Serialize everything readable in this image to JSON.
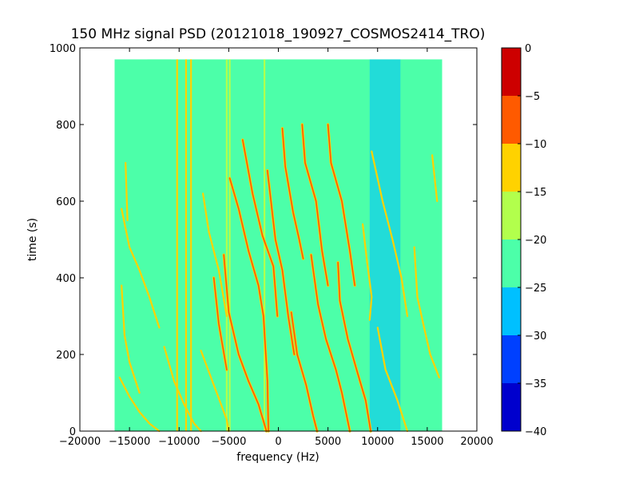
{
  "chart_data": {
    "type": "heatmap",
    "title": "150 MHz signal PSD (20121018_190927_COSMOS2414_TRO)",
    "xlabel": "frequency (Hz)",
    "ylabel": "time (s)",
    "xlim": [
      -20000,
      20000
    ],
    "ylim": [
      0,
      1000
    ],
    "x_ticks": [
      -20000,
      -15000,
      -10000,
      -5000,
      0,
      5000,
      10000,
      15000,
      20000
    ],
    "x_tick_labels": [
      "−20000",
      "−15000",
      "−10000",
      "−5000",
      "0",
      "5000",
      "10000",
      "15000",
      "20000"
    ],
    "y_ticks": [
      0,
      200,
      400,
      600,
      800,
      1000
    ],
    "y_tick_labels": [
      "0",
      "200",
      "400",
      "600",
      "800",
      "1000"
    ],
    "data_extent": {
      "x": [
        -16500,
        16500
      ],
      "y": [
        0,
        970
      ]
    },
    "background_level": -22,
    "colorbar": {
      "levels": [
        -40,
        -35,
        -30,
        -25,
        -20,
        -15,
        -10,
        -5,
        0
      ],
      "tick_labels": [
        "−40",
        "−35",
        "−30",
        "−25",
        "−20",
        "−15",
        "−10",
        "−5",
        "0"
      ],
      "colors": [
        "#0000cd",
        "#0040ff",
        "#00c0ff",
        "#4cffa9",
        "#b2ff4c",
        "#ffd200",
        "#ff5a00",
        "#cd0000"
      ]
    },
    "low_power_bands": [
      {
        "x": [
          9200,
          12300
        ],
        "y": [
          0,
          970
        ],
        "level": -27
      },
      {
        "x": [
          -13200,
          -10800
        ],
        "y": [
          0,
          970
        ],
        "level": -24
      }
    ],
    "vertical_lines": [
      {
        "x": -10200,
        "y": [
          0,
          970
        ],
        "level": -15
      },
      {
        "x": -9300,
        "y": [
          0,
          970
        ],
        "level": -15
      },
      {
        "x": -8800,
        "y": [
          0,
          970
        ],
        "level": -15
      },
      {
        "x": -5200,
        "y": [
          0,
          970
        ],
        "level": -17
      },
      {
        "x": -4900,
        "y": [
          0,
          970
        ],
        "level": -17
      },
      {
        "x": -1400,
        "y": [
          0,
          970
        ],
        "level": -20
      }
    ],
    "series": [
      {
        "level": -8,
        "values": [
          [
            -4900,
            660
          ],
          [
            -4000,
            580
          ],
          [
            -3000,
            470
          ],
          [
            -2000,
            380
          ],
          [
            -1500,
            300
          ],
          [
            -1100,
            130
          ],
          [
            -1000,
            0
          ]
        ]
      },
      {
        "level": -8,
        "values": [
          [
            -5500,
            460
          ],
          [
            -5000,
            310
          ],
          [
            -4000,
            200
          ],
          [
            -3000,
            130
          ],
          [
            -2000,
            70
          ],
          [
            -1200,
            0
          ]
        ]
      },
      {
        "level": -8,
        "values": [
          [
            -3600,
            760
          ],
          [
            -2600,
            620
          ],
          [
            -1600,
            510
          ],
          [
            -500,
            430
          ],
          [
            -100,
            300
          ]
        ]
      },
      {
        "level": -8,
        "values": [
          [
            -1100,
            680
          ],
          [
            -700,
            590
          ],
          [
            -300,
            500
          ],
          [
            400,
            420
          ],
          [
            1000,
            300
          ],
          [
            1600,
            200
          ]
        ]
      },
      {
        "level": -8,
        "values": [
          [
            400,
            790
          ],
          [
            700,
            690
          ],
          [
            1500,
            570
          ],
          [
            2100,
            500
          ],
          [
            2500,
            450
          ]
        ]
      },
      {
        "level": -8,
        "values": [
          [
            1300,
            310
          ],
          [
            1900,
            200
          ],
          [
            2800,
            120
          ],
          [
            3500,
            40
          ],
          [
            3900,
            0
          ]
        ]
      },
      {
        "level": -8,
        "values": [
          [
            2400,
            800
          ],
          [
            2700,
            700
          ],
          [
            3800,
            600
          ],
          [
            4400,
            470
          ],
          [
            5000,
            380
          ]
        ]
      },
      {
        "level": -8,
        "values": [
          [
            3300,
            460
          ],
          [
            4000,
            330
          ],
          [
            4800,
            240
          ],
          [
            5800,
            160
          ],
          [
            6400,
            100
          ],
          [
            7200,
            0
          ]
        ]
      },
      {
        "level": -8,
        "values": [
          [
            5000,
            800
          ],
          [
            5300,
            700
          ],
          [
            6400,
            600
          ],
          [
            7200,
            470
          ],
          [
            7700,
            380
          ]
        ]
      },
      {
        "level": -8,
        "values": [
          [
            6000,
            440
          ],
          [
            6200,
            340
          ],
          [
            7000,
            240
          ],
          [
            8000,
            150
          ],
          [
            8800,
            80
          ],
          [
            9300,
            0
          ]
        ]
      },
      {
        "level": -8,
        "values": [
          [
            -6500,
            400
          ],
          [
            -6000,
            280
          ],
          [
            -5200,
            160
          ]
        ]
      },
      {
        "level": -15,
        "values": [
          [
            -15800,
            580
          ],
          [
            -15000,
            480
          ],
          [
            -14000,
            420
          ],
          [
            -13000,
            350
          ],
          [
            -12000,
            270
          ]
        ]
      },
      {
        "level": -15,
        "values": [
          [
            -15800,
            380
          ],
          [
            -15500,
            250
          ],
          [
            -15000,
            180
          ],
          [
            -14000,
            100
          ]
        ]
      },
      {
        "level": -15,
        "values": [
          [
            -16000,
            140
          ],
          [
            -15000,
            90
          ],
          [
            -14000,
            50
          ],
          [
            -13000,
            20
          ],
          [
            -12000,
            0
          ]
        ]
      },
      {
        "level": -15,
        "values": [
          [
            -15400,
            700
          ],
          [
            -15200,
            550
          ]
        ]
      },
      {
        "level": -15,
        "values": [
          [
            -7600,
            620
          ],
          [
            -7000,
            520
          ],
          [
            -6000,
            420
          ],
          [
            -5200,
            300
          ]
        ]
      },
      {
        "level": -15,
        "values": [
          [
            -7800,
            210
          ],
          [
            -6500,
            120
          ],
          [
            -5200,
            30
          ],
          [
            -5000,
            0
          ]
        ]
      },
      {
        "level": -15,
        "values": [
          [
            -11500,
            220
          ],
          [
            -10500,
            130
          ],
          [
            -9500,
            70
          ],
          [
            -8500,
            20
          ],
          [
            -7800,
            0
          ]
        ]
      },
      {
        "level": -15,
        "values": [
          [
            8500,
            540
          ],
          [
            8900,
            450
          ],
          [
            9400,
            350
          ],
          [
            9200,
            290
          ]
        ]
      },
      {
        "level": -15,
        "values": [
          [
            9400,
            730
          ],
          [
            10500,
            600
          ],
          [
            11500,
            500
          ],
          [
            12400,
            400
          ],
          [
            13000,
            300
          ]
        ]
      },
      {
        "level": -15,
        "values": [
          [
            10000,
            270
          ],
          [
            10800,
            160
          ],
          [
            12000,
            80
          ],
          [
            13000,
            0
          ]
        ]
      },
      {
        "level": -15,
        "values": [
          [
            13700,
            480
          ],
          [
            14000,
            350
          ],
          [
            14600,
            280
          ],
          [
            15300,
            200
          ],
          [
            16200,
            140
          ]
        ]
      },
      {
        "level": -15,
        "values": [
          [
            15500,
            720
          ],
          [
            16000,
            600
          ]
        ]
      }
    ]
  }
}
